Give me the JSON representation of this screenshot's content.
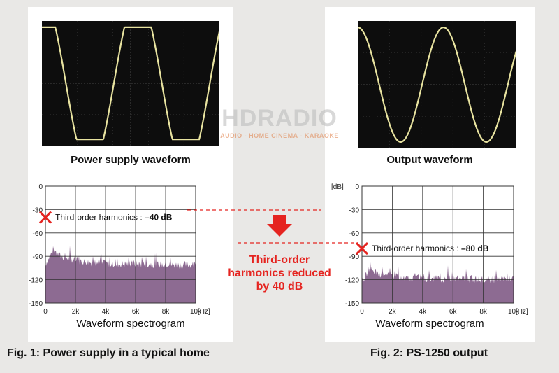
{
  "left": {
    "waveform_title": "Power supply waveform",
    "spectrum_title": "Waveform spectrogram",
    "harmonic_label": "Third-order harmonics : ",
    "harmonic_value": "–40 dB",
    "figure_caption": "Fig. 1: Power supply in a typical home"
  },
  "right": {
    "waveform_title": "Output waveform",
    "spectrum_title": "Waveform spectrogram",
    "harmonic_label": "Third-order harmonics : ",
    "harmonic_value": "–80 dB",
    "figure_caption": "Fig. 2: PS-1250 output"
  },
  "axis": {
    "y_unit": "[dB]",
    "x_unit": "[Hz]",
    "y_ticks": [
      "0",
      "-30",
      "-60",
      "-90",
      "-120",
      "-150"
    ],
    "x_ticks": [
      "0",
      "2k",
      "4k",
      "6k",
      "8k",
      "10k"
    ]
  },
  "callout": {
    "line1": "Third-order",
    "line2": "harmonics reduced",
    "line3": "by 40 dB"
  },
  "watermark": {
    "logo": "HDRADIO",
    "tagline": "AUDIO - HOME CINEMA - KARAOKE"
  },
  "colors": {
    "accent_red": "#e52420",
    "spectrum_fill": "#8d6b92",
    "waveform_trace": "#e8e3a0",
    "scope_background": "#0d0d0d"
  },
  "chart_data": [
    {
      "type": "area",
      "title": "Waveform spectrogram",
      "xlabel": "[Hz]",
      "ylabel": "[dB]",
      "xlim": [
        0,
        10000
      ],
      "ylim": [
        -150,
        0
      ],
      "grid": true,
      "annotation": {
        "text": "Third-order harmonics : –40 dB",
        "x": 0,
        "y": -40
      },
      "x": [
        0,
        500,
        1000,
        2000,
        3000,
        4000,
        5000,
        6000,
        7000,
        8000,
        9000,
        10000
      ],
      "values": [
        -105,
        -88,
        -95,
        -100,
        -103,
        -104,
        -105,
        -105,
        -105,
        -106,
        -106,
        -106
      ]
    },
    {
      "type": "area",
      "title": "Waveform spectrogram",
      "xlabel": "[Hz]",
      "ylabel": "[dB]",
      "xlim": [
        0,
        10000
      ],
      "ylim": [
        -150,
        0
      ],
      "grid": true,
      "annotation": {
        "text": "Third-order harmonics : –80 dB",
        "x": 0,
        "y": -80
      },
      "x": [
        0,
        500,
        1000,
        2000,
        3000,
        4000,
        5000,
        6000,
        7000,
        8000,
        9000,
        10000
      ],
      "values": [
        -128,
        -110,
        -118,
        -120,
        -122,
        -123,
        -124,
        -124,
        -124,
        -125,
        -125,
        -125
      ]
    }
  ]
}
